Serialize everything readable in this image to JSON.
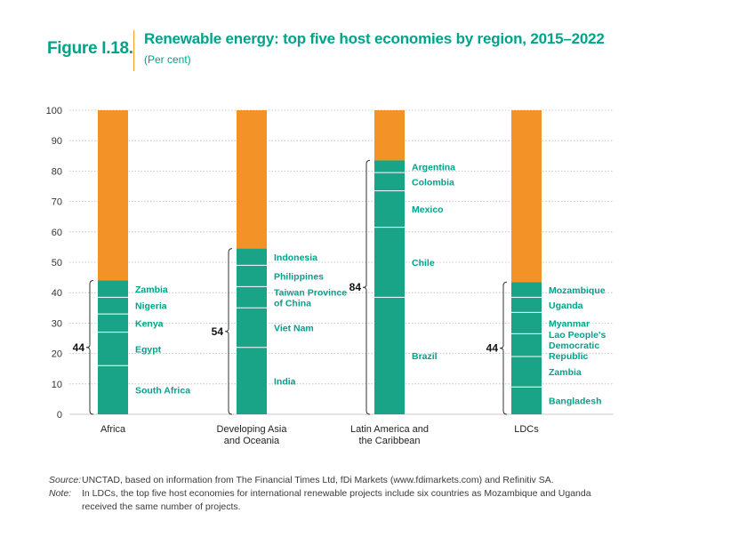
{
  "header": {
    "figure_label": "Figure I.18.",
    "title": "Renewable energy: top five host economies by region, 2015–2022",
    "subtitle": "(Per cent)"
  },
  "colors": {
    "green": "#1aa487",
    "orange": "#f39327",
    "grid": "#b9b9b9",
    "label": "#00a38a"
  },
  "chart_data": {
    "type": "bar",
    "stacked": true,
    "title": "Renewable energy: top five host economies by region, 2015–2022",
    "ylabel": "Per cent",
    "ylim": [
      0,
      100
    ],
    "yticks": [
      0,
      10,
      20,
      30,
      40,
      50,
      60,
      70,
      80,
      90,
      100
    ],
    "grid": true,
    "categories": [
      "Africa",
      "Developing Asia and Oceania",
      "Latin America and the Caribbean",
      "LDCs"
    ],
    "category_lines": [
      [
        "Africa"
      ],
      [
        "Developing Asia",
        "and Oceania"
      ],
      [
        "Latin America and",
        "the Caribbean"
      ],
      [
        "LDCs"
      ]
    ],
    "regions": [
      {
        "name": "Africa",
        "total_label": "44",
        "total": 44,
        "segments": [
          {
            "label": [
              "South Africa"
            ],
            "value": 16
          },
          {
            "label": [
              "Egypt"
            ],
            "value": 11
          },
          {
            "label": [
              "Kenya"
            ],
            "value": 6
          },
          {
            "label": [
              "Nigeria"
            ],
            "value": 5.5
          },
          {
            "label": [
              "Zambia"
            ],
            "value": 5.5
          }
        ]
      },
      {
        "name": "Developing Asia and Oceania",
        "total_label": "54",
        "total": 54.5,
        "segments": [
          {
            "label": [
              "India"
            ],
            "value": 22
          },
          {
            "label": [
              "Viet Nam"
            ],
            "value": 13
          },
          {
            "label": [
              "Taiwan Province",
              "of China"
            ],
            "value": 7
          },
          {
            "label": [
              "Philippines"
            ],
            "value": 7
          },
          {
            "label": [
              "Indonesia"
            ],
            "value": 5.5
          }
        ]
      },
      {
        "name": "Latin America and the Caribbean",
        "total_label": "84",
        "total": 83.5,
        "segments": [
          {
            "label": [
              "Brazil"
            ],
            "value": 38.5
          },
          {
            "label": [
              "Chile"
            ],
            "value": 23
          },
          {
            "label": [
              "Mexico"
            ],
            "value": 12
          },
          {
            "label": [
              "Colombia"
            ],
            "value": 6
          },
          {
            "label": [
              "Argentina"
            ],
            "value": 4
          }
        ]
      },
      {
        "name": "LDCs",
        "total_label": "44",
        "total": 43.5,
        "segments": [
          {
            "label": [
              "Bangladesh"
            ],
            "value": 9
          },
          {
            "label": [
              "Zambia"
            ],
            "value": 10
          },
          {
            "label": [
              "Lao People's",
              "Democratic",
              "Republic"
            ],
            "value": 7.5
          },
          {
            "label": [
              "Myanmar"
            ],
            "value": 7
          },
          {
            "label": [
              "Uganda"
            ],
            "value": 5
          },
          {
            "label": [
              "Mozambique"
            ],
            "value": 5
          }
        ]
      }
    ]
  },
  "notes": {
    "source_key": "Source:",
    "source_text": "UNCTAD, based on information from The Financial Times Ltd, fDi Markets (www.fdimarkets.com) and Refinitiv SA.",
    "note_key": "Note:",
    "note_text": "In LDCs, the top five host economies for international renewable projects include six countries as Mozambique and Uganda received the same number of projects."
  }
}
